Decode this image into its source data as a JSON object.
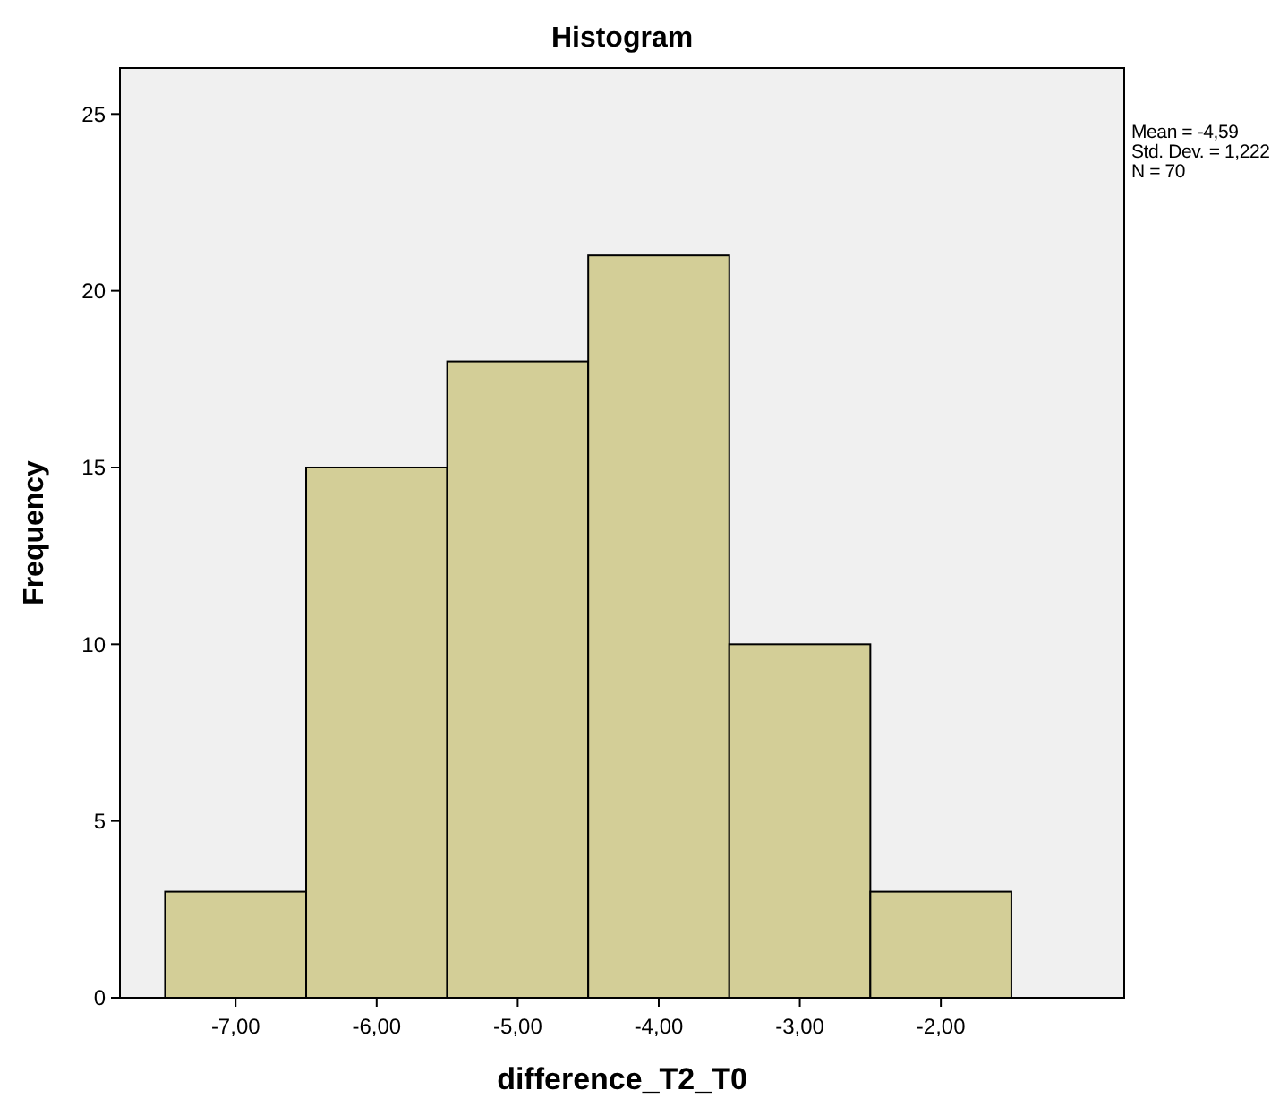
{
  "chart_data": {
    "type": "histogram",
    "title": "Histogram",
    "xlabel": "difference_T2_T0",
    "ylabel": "Frequency",
    "bins": [
      -7.5,
      -6.5,
      -5.5,
      -4.5,
      -3.5,
      -2.5,
      -1.5
    ],
    "values": [
      3,
      15,
      18,
      21,
      10,
      3
    ],
    "color": "#d3ce97",
    "xlim": [
      -7.82,
      -0.7
    ],
    "ylim": [
      0,
      26.3
    ],
    "xticks": [
      {
        "value": -7,
        "label": "-7,00"
      },
      {
        "value": -6,
        "label": "-6,00"
      },
      {
        "value": -5,
        "label": "-5,00"
      },
      {
        "value": -4,
        "label": "-4,00"
      },
      {
        "value": -3,
        "label": "-3,00"
      },
      {
        "value": -2,
        "label": "-2,00"
      }
    ],
    "yticks": [
      0,
      5,
      10,
      15,
      20,
      25
    ],
    "annotations": [
      "Mean = -4,59",
      "Std. Dev. = 1,222",
      "N = 70"
    ]
  }
}
